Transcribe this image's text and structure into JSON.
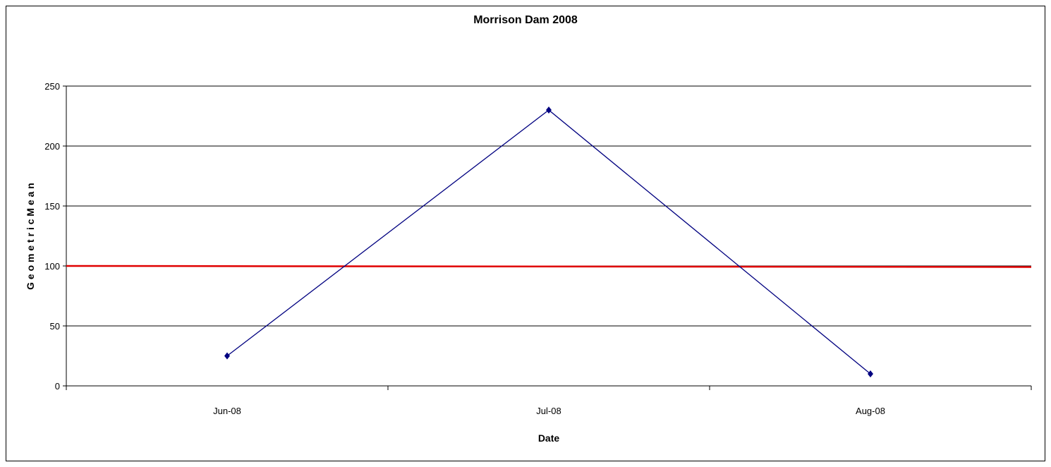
{
  "chart_data": {
    "type": "line",
    "title": "Morrison Dam 2008",
    "xlabel": "Date",
    "ylabel": "G e o m e t r i c  M e a n",
    "categories": [
      "Jun-08",
      "Jul-08",
      "Aug-08"
    ],
    "ylim": [
      0,
      250
    ],
    "yticks": [
      0,
      50,
      100,
      150,
      200,
      250
    ],
    "grid": true,
    "legend": "none",
    "series": [
      {
        "values": [
          25,
          230,
          10
        ],
        "color": "#000080",
        "marker": "diamond"
      }
    ],
    "reference_line": {
      "value": 100,
      "color": "#e00000"
    }
  }
}
